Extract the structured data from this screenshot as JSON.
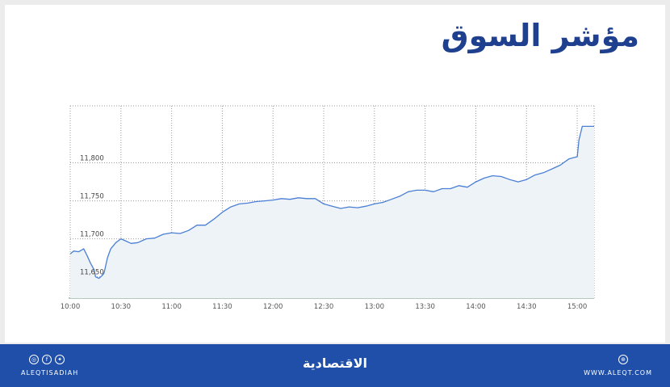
{
  "header": {
    "title": "مؤشر السوق"
  },
  "footer": {
    "handle": "ALEQTISADIAH",
    "brand": "الاقتصادية",
    "website": "WWW.ALEQT.COM",
    "social_icons": [
      "instagram-icon",
      "facebook-icon",
      "twitter-icon"
    ],
    "web_icon": "globe-icon"
  },
  "colors": {
    "title": "#1f3f8f",
    "footer_bg": "#1f4fa8",
    "line": "#4a7fd4",
    "area": "#eef3f8"
  },
  "chart_data": {
    "type": "area",
    "title": "",
    "xlabel": "",
    "ylabel": "",
    "grid": true,
    "x_ticks": [
      "10:00",
      "10:30",
      "11:00",
      "11:30",
      "12:00",
      "12:30",
      "13:00",
      "13:30",
      "14:00",
      "14:30",
      "15:00"
    ],
    "y_ticks": [
      "11,650",
      "11,700",
      "11,750",
      "11,800"
    ],
    "y_tick_values": [
      11650,
      11700,
      11750,
      11800
    ],
    "ylim": [
      11622,
      11875
    ],
    "xlim": [
      "10:00",
      "15:10"
    ],
    "series": [
      {
        "x": [
          "10:00",
          "10:02",
          "10:05",
          "10:08",
          "10:10",
          "10:12",
          "10:14",
          "10:15",
          "10:17",
          "10:19",
          "10:20",
          "10:22",
          "10:24",
          "10:27",
          "10:30",
          "10:33",
          "10:36",
          "10:40",
          "10:45",
          "10:50",
          "10:55",
          "11:00",
          "11:05",
          "11:10",
          "11:15",
          "11:20",
          "11:25",
          "11:30",
          "11:35",
          "11:40",
          "11:45",
          "11:50",
          "11:55",
          "12:00",
          "12:05",
          "12:10",
          "12:15",
          "12:20",
          "12:25",
          "12:30",
          "12:35",
          "12:40",
          "12:45",
          "12:50",
          "12:55",
          "13:00",
          "13:05",
          "13:10",
          "13:15",
          "13:20",
          "13:25",
          "13:30",
          "13:35",
          "13:40",
          "13:45",
          "13:50",
          "13:55",
          "14:00",
          "14:05",
          "14:10",
          "14:15",
          "14:20",
          "14:25",
          "14:30",
          "14:35",
          "14:40",
          "14:45",
          "14:50",
          "14:55",
          "14:58",
          "15:00",
          "15:01",
          "15:03",
          "15:05",
          "15:10"
        ],
        "values": [
          11680,
          11684,
          11683,
          11687,
          11678,
          11668,
          11660,
          11650,
          11648,
          11652,
          11655,
          11675,
          11687,
          11695,
          11700,
          11697,
          11694,
          11695,
          11700,
          11701,
          11706,
          11708,
          11707,
          11711,
          11718,
          11718,
          11726,
          11735,
          11742,
          11746,
          11747,
          11749,
          11750,
          11751,
          11753,
          11752,
          11754,
          11753,
          11753,
          11746,
          11743,
          11740,
          11742,
          11741,
          11743,
          11746,
          11748,
          11752,
          11756,
          11762,
          11764,
          11764,
          11762,
          11766,
          11766,
          11770,
          11768,
          11775,
          11780,
          11783,
          11782,
          11778,
          11775,
          11778,
          11784,
          11787,
          11792,
          11797,
          11805,
          11807,
          11808,
          11830,
          11848,
          11848,
          11848
        ]
      }
    ]
  }
}
